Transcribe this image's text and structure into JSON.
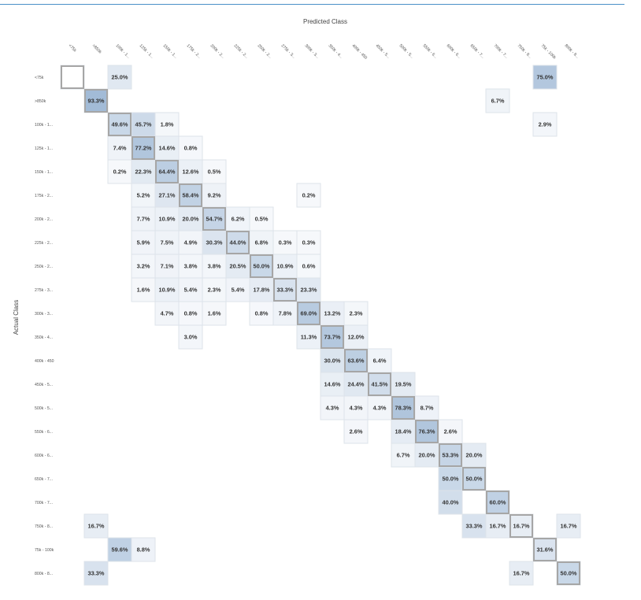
{
  "chart_data": {
    "type": "heatmap",
    "title": "",
    "xlabel": "Predicted Class",
    "ylabel": "Actual Class",
    "x_tick_labels": [
      "<75k",
      ">850k",
      "100k - 1...",
      "125k - 1...",
      "150k - 1...",
      "175k - 2...",
      "200k - 2...",
      "225k - 2...",
      "250k - 2...",
      "275k - 3...",
      "300k - 3...",
      "350k - 4...",
      "400k - 450",
      "450k - 5...",
      "500k - 5...",
      "550k - 6...",
      "600k - 6...",
      "650k - 7...",
      "700k - 7...",
      "750k - 8...",
      "75k - 100k",
      "800k - 8..."
    ],
    "y_tick_labels": [
      "<75k",
      ">850k",
      "100k - 1...",
      "125k - 1...",
      "150k - 1...",
      "175k - 2...",
      "200k - 2...",
      "225k - 2...",
      "250k - 2...",
      "275k - 3...",
      "300k - 3...",
      "350k - 4...",
      "400k - 450",
      "450k - 5...",
      "500k - 5...",
      "550k - 6...",
      "600k - 6...",
      "650k - 7...",
      "700k - 7...",
      "750k - 8...",
      "75k - 100k",
      "800k - 8..."
    ],
    "cells": [
      {
        "row": 0,
        "col": 0,
        "value": null
      },
      {
        "row": 0,
        "col": 2,
        "value": 25.0
      },
      {
        "row": 0,
        "col": 20,
        "value": 75.0
      },
      {
        "row": 1,
        "col": 1,
        "value": 93.3
      },
      {
        "row": 1,
        "col": 18,
        "value": 6.7
      },
      {
        "row": 2,
        "col": 2,
        "value": 49.6
      },
      {
        "row": 2,
        "col": 3,
        "value": 45.7
      },
      {
        "row": 2,
        "col": 4,
        "value": 1.8
      },
      {
        "row": 2,
        "col": 20,
        "value": 2.9
      },
      {
        "row": 3,
        "col": 2,
        "value": 7.4
      },
      {
        "row": 3,
        "col": 3,
        "value": 77.2
      },
      {
        "row": 3,
        "col": 4,
        "value": 14.6
      },
      {
        "row": 3,
        "col": 5,
        "value": 0.8
      },
      {
        "row": 4,
        "col": 2,
        "value": 0.2
      },
      {
        "row": 4,
        "col": 3,
        "value": 22.3
      },
      {
        "row": 4,
        "col": 4,
        "value": 64.4
      },
      {
        "row": 4,
        "col": 5,
        "value": 12.6
      },
      {
        "row": 4,
        "col": 6,
        "value": 0.5
      },
      {
        "row": 5,
        "col": 3,
        "value": 5.2
      },
      {
        "row": 5,
        "col": 4,
        "value": 27.1
      },
      {
        "row": 5,
        "col": 5,
        "value": 58.4
      },
      {
        "row": 5,
        "col": 6,
        "value": 9.2
      },
      {
        "row": 5,
        "col": 10,
        "value": 0.2
      },
      {
        "row": 6,
        "col": 3,
        "value": 7.7
      },
      {
        "row": 6,
        "col": 4,
        "value": 10.9
      },
      {
        "row": 6,
        "col": 5,
        "value": 20.0
      },
      {
        "row": 6,
        "col": 6,
        "value": 54.7
      },
      {
        "row": 6,
        "col": 7,
        "value": 6.2
      },
      {
        "row": 6,
        "col": 8,
        "value": 0.5
      },
      {
        "row": 7,
        "col": 3,
        "value": 5.9
      },
      {
        "row": 7,
        "col": 4,
        "value": 7.5
      },
      {
        "row": 7,
        "col": 5,
        "value": 4.9
      },
      {
        "row": 7,
        "col": 6,
        "value": 30.3
      },
      {
        "row": 7,
        "col": 7,
        "value": 44.0
      },
      {
        "row": 7,
        "col": 8,
        "value": 6.8
      },
      {
        "row": 7,
        "col": 9,
        "value": 0.3
      },
      {
        "row": 7,
        "col": 10,
        "value": 0.3
      },
      {
        "row": 8,
        "col": 3,
        "value": 3.2
      },
      {
        "row": 8,
        "col": 4,
        "value": 7.1
      },
      {
        "row": 8,
        "col": 5,
        "value": 3.8
      },
      {
        "row": 8,
        "col": 6,
        "value": 3.8
      },
      {
        "row": 8,
        "col": 7,
        "value": 20.5
      },
      {
        "row": 8,
        "col": 8,
        "value": 50.0
      },
      {
        "row": 8,
        "col": 9,
        "value": 10.9
      },
      {
        "row": 8,
        "col": 10,
        "value": 0.6
      },
      {
        "row": 9,
        "col": 3,
        "value": 1.6
      },
      {
        "row": 9,
        "col": 4,
        "value": 10.9
      },
      {
        "row": 9,
        "col": 5,
        "value": 5.4
      },
      {
        "row": 9,
        "col": 6,
        "value": 2.3
      },
      {
        "row": 9,
        "col": 7,
        "value": 5.4
      },
      {
        "row": 9,
        "col": 8,
        "value": 17.8
      },
      {
        "row": 9,
        "col": 9,
        "value": 33.3
      },
      {
        "row": 9,
        "col": 10,
        "value": 23.3
      },
      {
        "row": 10,
        "col": 4,
        "value": 4.7
      },
      {
        "row": 10,
        "col": 5,
        "value": 0.8
      },
      {
        "row": 10,
        "col": 6,
        "value": 1.6
      },
      {
        "row": 10,
        "col": 8,
        "value": 0.8
      },
      {
        "row": 10,
        "col": 9,
        "value": 7.8
      },
      {
        "row": 10,
        "col": 10,
        "value": 69.0
      },
      {
        "row": 10,
        "col": 11,
        "value": 13.2
      },
      {
        "row": 10,
        "col": 12,
        "value": 2.3
      },
      {
        "row": 11,
        "col": 5,
        "value": 3.0
      },
      {
        "row": 11,
        "col": 10,
        "value": 11.3
      },
      {
        "row": 11,
        "col": 11,
        "value": 73.7
      },
      {
        "row": 11,
        "col": 12,
        "value": 12.0
      },
      {
        "row": 12,
        "col": 11,
        "value": 30.0
      },
      {
        "row": 12,
        "col": 12,
        "value": 63.6
      },
      {
        "row": 12,
        "col": 13,
        "value": 6.4
      },
      {
        "row": 13,
        "col": 11,
        "value": 14.6
      },
      {
        "row": 13,
        "col": 12,
        "value": 24.4
      },
      {
        "row": 13,
        "col": 13,
        "value": 41.5
      },
      {
        "row": 13,
        "col": 14,
        "value": 19.5
      },
      {
        "row": 14,
        "col": 11,
        "value": 4.3
      },
      {
        "row": 14,
        "col": 12,
        "value": 4.3
      },
      {
        "row": 14,
        "col": 13,
        "value": 4.3
      },
      {
        "row": 14,
        "col": 14,
        "value": 78.3
      },
      {
        "row": 14,
        "col": 15,
        "value": 8.7
      },
      {
        "row": 15,
        "col": 12,
        "value": 2.6
      },
      {
        "row": 15,
        "col": 14,
        "value": 18.4
      },
      {
        "row": 15,
        "col": 15,
        "value": 76.3
      },
      {
        "row": 15,
        "col": 16,
        "value": 2.6
      },
      {
        "row": 16,
        "col": 14,
        "value": 6.7
      },
      {
        "row": 16,
        "col": 15,
        "value": 20.0
      },
      {
        "row": 16,
        "col": 16,
        "value": 53.3
      },
      {
        "row": 16,
        "col": 17,
        "value": 20.0
      },
      {
        "row": 17,
        "col": 16,
        "value": 50.0
      },
      {
        "row": 17,
        "col": 17,
        "value": 50.0
      },
      {
        "row": 18,
        "col": 16,
        "value": 40.0
      },
      {
        "row": 18,
        "col": 18,
        "value": 60.0
      },
      {
        "row": 19,
        "col": 1,
        "value": 16.7
      },
      {
        "row": 19,
        "col": 17,
        "value": 33.3
      },
      {
        "row": 19,
        "col": 18,
        "value": 16.7
      },
      {
        "row": 19,
        "col": 19,
        "value": 16.7
      },
      {
        "row": 19,
        "col": 21,
        "value": 16.7
      },
      {
        "row": 20,
        "col": 2,
        "value": 59.6
      },
      {
        "row": 20,
        "col": 3,
        "value": 8.8
      },
      {
        "row": 20,
        "col": 20,
        "value": 31.6
      },
      {
        "row": 21,
        "col": 1,
        "value": 33.3
      },
      {
        "row": 21,
        "col": 19,
        "value": 16.7
      },
      {
        "row": 21,
        "col": 21,
        "value": 50.0
      }
    ],
    "value_unit": "%",
    "diagonal_highlighted": true,
    "color_low": "#f6f8fb",
    "color_high": "#9cb7d4",
    "cell_border_color": "#dde3ea",
    "diagonal_border_color": "#a6a6a6",
    "accent_rule_color": "#4a90c8"
  }
}
